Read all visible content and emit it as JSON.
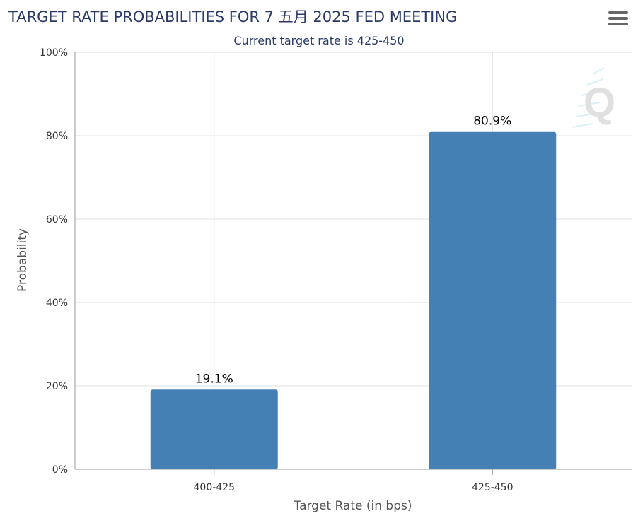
{
  "header": {
    "title": "TARGET RATE PROBABILITIES FOR 7 五月 2025 FED MEETING",
    "subtitle": "Current target rate is 425-450"
  },
  "colors": {
    "bar": "#4580b5",
    "grid": "#e0e0e0",
    "axis": "#999999",
    "title": "#2b3a67"
  },
  "icons": {
    "menu": "hamburger-menu-icon",
    "watermark": "q-logo"
  },
  "chart_data": {
    "type": "bar",
    "title": "TARGET RATE PROBABILITIES FOR 7 五月 2025 FED MEETING",
    "subtitle": "Current target rate is 425-450",
    "categories": [
      "400-425",
      "425-450"
    ],
    "values": [
      19.1,
      80.9
    ],
    "data_labels": [
      "19.1%",
      "80.9%"
    ],
    "xlabel": "Target Rate (in bps)",
    "ylabel": "Probability",
    "ylim": [
      0,
      100
    ],
    "yticks": [
      0,
      20,
      40,
      60,
      80,
      100
    ],
    "ytick_labels": [
      "0%",
      "20%",
      "40%",
      "60%",
      "80%",
      "100%"
    ],
    "grid": true,
    "legend": "none"
  }
}
